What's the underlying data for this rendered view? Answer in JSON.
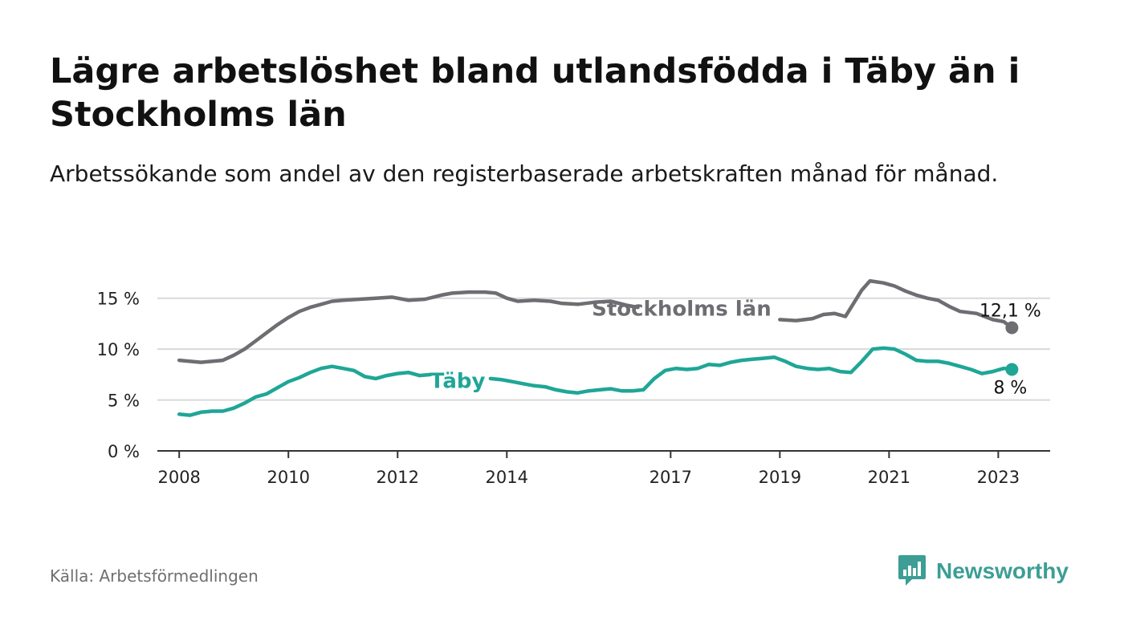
{
  "title": "Lägre arbetslöshet bland utlandsfödda i Täby än i Stockholms län",
  "subtitle": "Arbetssökande som andel av den registerbaserade arbetskraften månad för månad.",
  "source": "Källa: Arbetsförmedlingen",
  "brand": {
    "name": "Newsworthy",
    "logo_icon": "bar-chart-speech-bubble-icon",
    "color": "#3c9e95"
  },
  "chart_data": {
    "type": "line",
    "title": "Lägre arbetslöshet bland utlandsfödda i Täby än i Stockholms län",
    "xlabel": "",
    "ylabel": "",
    "xlim": [
      2007.6,
      2023.95
    ],
    "ylim": [
      0,
      17.5
    ],
    "y_ticks": [
      0,
      5,
      10,
      15
    ],
    "y_tick_labels": [
      "0 %",
      "5 %",
      "10 %",
      "15 %"
    ],
    "x_ticks": [
      2008,
      2010,
      2012,
      2014,
      2017,
      2019,
      2021,
      2023
    ],
    "x_tick_labels": [
      "2008",
      "2010",
      "2012",
      "2014",
      "2017",
      "2019",
      "2021",
      "2023"
    ],
    "grid": true,
    "series": [
      {
        "name": "Stockholms län",
        "color": "#6e6d72",
        "end_label": "12,1 %",
        "points": [
          [
            2008.0,
            8.9
          ],
          [
            2008.2,
            8.8
          ],
          [
            2008.4,
            8.7
          ],
          [
            2008.6,
            8.8
          ],
          [
            2008.8,
            8.9
          ],
          [
            2009.0,
            9.4
          ],
          [
            2009.2,
            10.0
          ],
          [
            2009.4,
            10.8
          ],
          [
            2009.6,
            11.6
          ],
          [
            2009.8,
            12.4
          ],
          [
            2010.0,
            13.1
          ],
          [
            2010.2,
            13.7
          ],
          [
            2010.4,
            14.1
          ],
          [
            2010.6,
            14.4
          ],
          [
            2010.8,
            14.7
          ],
          [
            2011.0,
            14.8
          ],
          [
            2011.3,
            14.9
          ],
          [
            2011.6,
            15.0
          ],
          [
            2011.9,
            15.1
          ],
          [
            2012.2,
            14.8
          ],
          [
            2012.5,
            14.9
          ],
          [
            2012.8,
            15.3
          ],
          [
            2013.0,
            15.5
          ],
          [
            2013.3,
            15.6
          ],
          [
            2013.6,
            15.6
          ],
          [
            2013.8,
            15.5
          ],
          [
            2014.0,
            15.0
          ],
          [
            2014.2,
            14.7
          ],
          [
            2014.5,
            14.8
          ],
          [
            2014.8,
            14.7
          ],
          [
            2015.0,
            14.5
          ],
          [
            2015.3,
            14.4
          ],
          [
            2015.6,
            14.6
          ],
          [
            2015.9,
            14.7
          ],
          [
            2016.2,
            14.3
          ],
          [
            2016.4,
            14.1
          ],
          [
            2019.0,
            12.9
          ],
          [
            2019.3,
            12.8
          ],
          [
            2019.6,
            13.0
          ],
          [
            2019.8,
            13.4
          ],
          [
            2020.0,
            13.5
          ],
          [
            2020.2,
            13.2
          ],
          [
            2020.35,
            14.5
          ],
          [
            2020.5,
            15.8
          ],
          [
            2020.65,
            16.7
          ],
          [
            2020.9,
            16.5
          ],
          [
            2021.1,
            16.2
          ],
          [
            2021.3,
            15.7
          ],
          [
            2021.5,
            15.3
          ],
          [
            2021.7,
            15.0
          ],
          [
            2021.9,
            14.8
          ],
          [
            2022.1,
            14.2
          ],
          [
            2022.3,
            13.7
          ],
          [
            2022.6,
            13.5
          ],
          [
            2022.9,
            12.9
          ],
          [
            2023.1,
            12.7
          ],
          [
            2023.25,
            12.1
          ]
        ]
      },
      {
        "name": "Täby",
        "color": "#1fa696",
        "end_label": "8 %",
        "points": [
          [
            2008.0,
            3.6
          ],
          [
            2008.2,
            3.5
          ],
          [
            2008.4,
            3.8
          ],
          [
            2008.6,
            3.9
          ],
          [
            2008.8,
            3.9
          ],
          [
            2009.0,
            4.2
          ],
          [
            2009.2,
            4.7
          ],
          [
            2009.4,
            5.3
          ],
          [
            2009.6,
            5.6
          ],
          [
            2009.8,
            6.2
          ],
          [
            2010.0,
            6.8
          ],
          [
            2010.2,
            7.2
          ],
          [
            2010.4,
            7.7
          ],
          [
            2010.6,
            8.1
          ],
          [
            2010.8,
            8.3
          ],
          [
            2011.0,
            8.1
          ],
          [
            2011.2,
            7.9
          ],
          [
            2011.4,
            7.3
          ],
          [
            2011.6,
            7.1
          ],
          [
            2011.8,
            7.4
          ],
          [
            2012.0,
            7.6
          ],
          [
            2012.2,
            7.7
          ],
          [
            2012.4,
            7.4
          ],
          [
            2012.6,
            7.5
          ],
          [
            2013.7,
            7.1
          ],
          [
            2013.9,
            7.0
          ],
          [
            2014.1,
            6.8
          ],
          [
            2014.3,
            6.6
          ],
          [
            2014.5,
            6.4
          ],
          [
            2014.7,
            6.3
          ],
          [
            2014.9,
            6.0
          ],
          [
            2015.1,
            5.8
          ],
          [
            2015.3,
            5.7
          ],
          [
            2015.5,
            5.9
          ],
          [
            2015.7,
            6.0
          ],
          [
            2015.9,
            6.1
          ],
          [
            2016.1,
            5.9
          ],
          [
            2016.3,
            5.9
          ],
          [
            2016.5,
            6.0
          ],
          [
            2016.7,
            7.1
          ],
          [
            2016.9,
            7.9
          ],
          [
            2017.1,
            8.1
          ],
          [
            2017.3,
            8.0
          ],
          [
            2017.5,
            8.1
          ],
          [
            2017.7,
            8.5
          ],
          [
            2017.9,
            8.4
          ],
          [
            2018.1,
            8.7
          ],
          [
            2018.3,
            8.9
          ],
          [
            2018.5,
            9.0
          ],
          [
            2018.7,
            9.1
          ],
          [
            2018.9,
            9.2
          ],
          [
            2019.1,
            8.8
          ],
          [
            2019.3,
            8.3
          ],
          [
            2019.5,
            8.1
          ],
          [
            2019.7,
            8.0
          ],
          [
            2019.9,
            8.1
          ],
          [
            2020.1,
            7.8
          ],
          [
            2020.3,
            7.7
          ],
          [
            2020.5,
            8.8
          ],
          [
            2020.7,
            10.0
          ],
          [
            2020.9,
            10.1
          ],
          [
            2021.1,
            10.0
          ],
          [
            2021.3,
            9.5
          ],
          [
            2021.5,
            8.9
          ],
          [
            2021.7,
            8.8
          ],
          [
            2021.9,
            8.8
          ],
          [
            2022.1,
            8.6
          ],
          [
            2022.3,
            8.3
          ],
          [
            2022.5,
            8.0
          ],
          [
            2022.7,
            7.6
          ],
          [
            2022.9,
            7.8
          ],
          [
            2023.1,
            8.1
          ],
          [
            2023.25,
            8.0
          ]
        ]
      }
    ],
    "annotations": [
      {
        "series": "Stockholms län",
        "text": "Stockholms län",
        "x": 2017.2,
        "y": 14.0
      },
      {
        "series": "Täby",
        "text": "Täby",
        "x": 2013.1,
        "y": 6.9
      }
    ]
  }
}
